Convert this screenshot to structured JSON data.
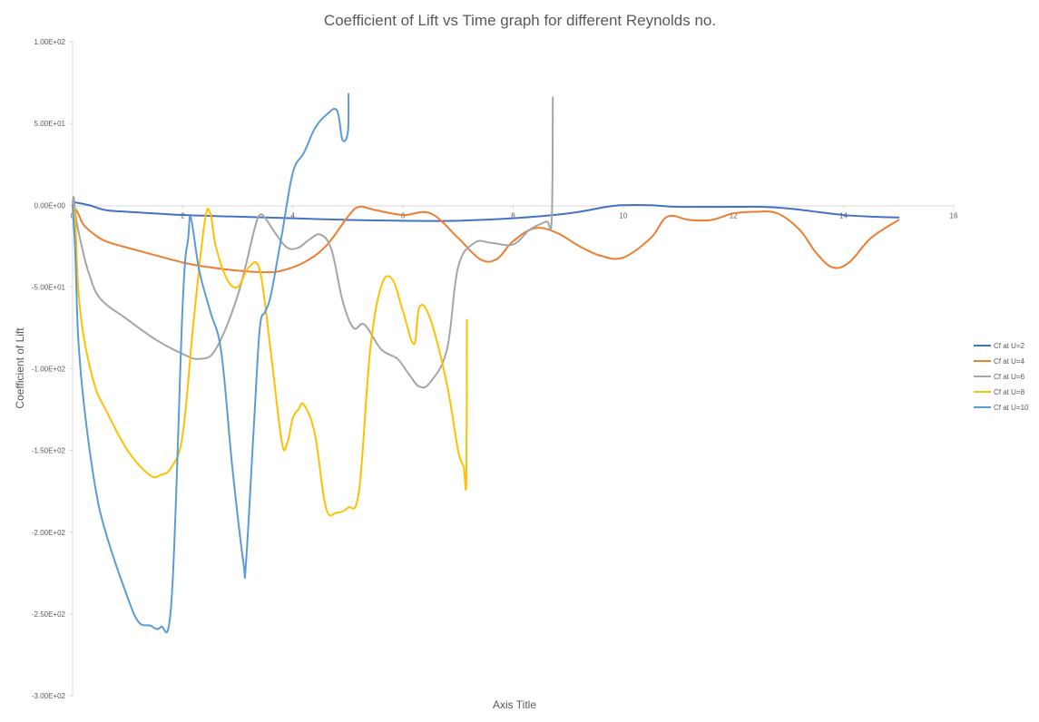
{
  "chart_data": {
    "type": "line",
    "title": "Coefficient of Lift vs Time graph for different Reynolds no.",
    "xlabel": "Axis Title",
    "ylabel": "Coefficient of Lift",
    "xlim": [
      0,
      16
    ],
    "ylim": [
      -300,
      100
    ],
    "x_ticks": [
      "0",
      "2",
      "4",
      "6",
      "8",
      "10",
      "12",
      "14",
      "16"
    ],
    "y_ticks": [
      "1.00E+02",
      "5.00E+01",
      "0.00E+00",
      "-5.00E+01",
      "-1.00E+02",
      "-1.50E+02",
      "-2.00E+02",
      "-2.50E+02",
      "-3.00E+02"
    ],
    "grid": false,
    "legend_position": "right",
    "series": [
      {
        "name": "Cf at U=2",
        "color": "#4472c4",
        "x": [
          0,
          0.3,
          0.6,
          1,
          2,
          3,
          4,
          5,
          6,
          7,
          8,
          9,
          9.7,
          10,
          10.5,
          11,
          12,
          12.5,
          13,
          13.5,
          14,
          14.5,
          15
        ],
        "y": [
          2,
          0,
          -3,
          -4,
          -6,
          -7,
          -8,
          -9,
          -9.5,
          -9.5,
          -8,
          -5,
          -1,
          0,
          0,
          -1,
          -1,
          -1,
          -2,
          -4,
          -6,
          -7,
          -7.5
        ]
      },
      {
        "name": "Cf at U=4",
        "color": "#ed7d31",
        "x": [
          0,
          0.1,
          0.2,
          0.4,
          0.6,
          1,
          2,
          2.5,
          3,
          3.5,
          3.8,
          4.2,
          4.6,
          5,
          5.2,
          5.5,
          6,
          6.5,
          7,
          7.4,
          7.7,
          8,
          8.4,
          8.8,
          9.2,
          9.6,
          10,
          10.5,
          10.8,
          11.2,
          11.6,
          12,
          12.4,
          12.8,
          13.2,
          13.5,
          13.8,
          14.1,
          14.5,
          15
        ],
        "y": [
          0,
          -5,
          -12,
          -18,
          -22,
          -26,
          -35,
          -38,
          -40,
          -41,
          -40,
          -35,
          -25,
          -7,
          -1,
          -3,
          -6,
          -5,
          -20,
          -33,
          -33,
          -22,
          -14,
          -17,
          -25,
          -31,
          -32,
          -20,
          -7,
          -9,
          -9,
          -5,
          -4,
          -5,
          -15,
          -29,
          -38,
          -35,
          -20,
          -9
        ]
      },
      {
        "name": "Cf at U=6",
        "color": "#a5a5a5",
        "x": [
          0,
          0.02,
          0.05,
          0.1,
          0.2,
          0.3,
          0.5,
          1,
          1.5,
          2,
          2.3,
          2.6,
          3,
          3.3,
          3.4,
          3.5,
          3.7,
          3.9,
          4.1,
          4.3,
          4.5,
          4.7,
          4.9,
          5.1,
          5.3,
          5.6,
          5.9,
          6.1,
          6.3,
          6.5,
          6.8,
          7,
          7.3,
          7.6,
          8,
          8.3,
          8.6,
          8.7,
          8.72
        ],
        "y": [
          0,
          5,
          -5,
          -15,
          -30,
          -42,
          -57,
          -70,
          -82,
          -91,
          -94,
          -88,
          -55,
          -15,
          -6,
          -8,
          -18,
          -26,
          -26,
          -21,
          -18,
          -27,
          -58,
          -75,
          -73,
          -88,
          -94,
          -103,
          -111,
          -108,
          -88,
          -38,
          -23,
          -23,
          -24,
          -15,
          -10,
          -9,
          66
        ]
      },
      {
        "name": "Cf at U=8",
        "color": "#ffc000",
        "x": [
          0,
          0.05,
          0.1,
          0.2,
          0.4,
          0.6,
          1,
          1.4,
          1.6,
          1.8,
          2,
          2.2,
          2.4,
          2.5,
          2.6,
          2.8,
          3,
          3.2,
          3.4,
          3.6,
          3.8,
          3.9,
          4,
          4.1,
          4.2,
          4.4,
          4.6,
          4.8,
          5,
          5.2,
          5.4,
          5.6,
          5.8,
          6,
          6.2,
          6.3,
          6.5,
          6.8,
          7,
          7.1,
          7.15,
          7.16
        ],
        "y": [
          0,
          -10,
          -50,
          -80,
          -110,
          -125,
          -150,
          -165,
          -165,
          -160,
          -140,
          -70,
          -10,
          -5,
          -25,
          -45,
          -50,
          -38,
          -40,
          -90,
          -145,
          -145,
          -130,
          -125,
          -122,
          -140,
          -185,
          -188,
          -185,
          -175,
          -90,
          -50,
          -45,
          -65,
          -85,
          -62,
          -70,
          -110,
          -150,
          -160,
          -168,
          -70
        ]
      },
      {
        "name": "Cf at U=10",
        "color": "#5b9bd5",
        "x": [
          0,
          0.05,
          0.1,
          0.2,
          0.4,
          0.6,
          1,
          1.2,
          1.4,
          1.6,
          1.8,
          2,
          2.1,
          2.15,
          2.3,
          2.5,
          2.7,
          2.9,
          3.1,
          3.15,
          3.3,
          3.4,
          3.5,
          3.6,
          3.8,
          4,
          4.2,
          4.4,
          4.6,
          4.8,
          4.9,
          5,
          5.01
        ],
        "y": [
          0,
          -30,
          -80,
          -120,
          -170,
          -200,
          -240,
          -255,
          -257,
          -258,
          -240,
          -60,
          -20,
          -8,
          -40,
          -65,
          -90,
          -160,
          -218,
          -218,
          -130,
          -75,
          -65,
          -55,
          -18,
          20,
          32,
          47,
          55,
          58,
          40,
          45,
          68
        ]
      }
    ]
  }
}
